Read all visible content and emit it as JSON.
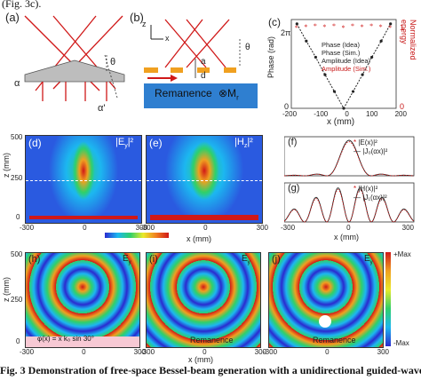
{
  "caption_top": "(Fig. 3c).",
  "caption_bottom": "Fig. 3 Demonstration of free-space Bessel-beam generation with a unidirectional guided-wave-",
  "panels": {
    "a": {
      "label": "(a)",
      "alpha": "α",
      "alpha_prime": "α'",
      "theta": "θ"
    },
    "b": {
      "label": "(b)",
      "z": "z",
      "x": "x",
      "a": "a",
      "d": "d",
      "theta": "θ",
      "remanence": "Remanence",
      "mr": "⊗M",
      "mr_sub": "r"
    },
    "c": {
      "label": "(c)",
      "ylabel_left": "Phase (rad)",
      "ylabel_right": "Normalized energy",
      "xlabel": "x (mm)",
      "ytick_left_top": "2π",
      "ytick_left_bottom": "0",
      "ytick_right_top": "1",
      "ytick_right_bottom": "0",
      "xticks": [
        "-200",
        "-100",
        "0",
        "100",
        "200"
      ],
      "legend": [
        "Phase (Idea)",
        "Phase (Sim.)",
        "Amplitude (Idea)",
        "Amplitude (Sim.)"
      ]
    },
    "d": {
      "label": "(d)",
      "title": "|E",
      "title_sub": "y",
      "title_sup": "|²"
    },
    "e": {
      "label": "(e)",
      "title": "|H",
      "title_sub": "z",
      "title_sup": "|²"
    },
    "f": {
      "label": "(f)",
      "legend": [
        "|E",
        "|J"
      ],
      "legend1": "|E(x)|²",
      "legend2": "|J₀(αx)|²"
    },
    "g": {
      "label": "(g)",
      "legend1": "|H(x)|²",
      "legend2": "|J₁(αx)|²",
      "xlabel": "x (mm)",
      "xticks": [
        "-300",
        "0",
        "300"
      ]
    },
    "fg_ylabel": "Normalized intensity",
    "de_axes": {
      "zlabel": "z (mm)",
      "zticks": [
        "500",
        "250",
        "0"
      ],
      "xticks_d": [
        "-300",
        "0",
        "300"
      ],
      "xticks_e": [
        "-300",
        "0",
        "300"
      ],
      "xlabel": "x (mm)"
    },
    "colorbar": {
      "min": "0",
      "max": "Max"
    },
    "h": {
      "label": "(h)",
      "field": "E",
      "field_sub": "y",
      "formula": "φ(x) = x k₀ sin 30°",
      "zlabel": "z (mm)",
      "zticks": [
        "500",
        "250",
        "0"
      ],
      "xticks": [
        "-300",
        "0",
        "300"
      ]
    },
    "i": {
      "label": "(i)",
      "field": "E",
      "field_sub": "y",
      "remanence": "Remanence",
      "xlabel": "x (mm)",
      "xticks": [
        "-300",
        "0",
        "300"
      ]
    },
    "j": {
      "label": "(j)",
      "field": "E",
      "field_sub": "y",
      "remanence": "Remanence",
      "xticks": [
        "-300",
        "0",
        "300"
      ]
    },
    "hij_colorbar": {
      "max": "+Max",
      "min": "-Max"
    }
  },
  "chart_data": {
    "type": "line",
    "title": "",
    "xlabel": "x (mm)",
    "ylabel": "Phase (rad)",
    "x": [
      -250,
      -200,
      -150,
      -100,
      -50,
      0,
      50,
      100,
      150,
      200,
      250
    ],
    "series": [
      {
        "name": "Phase (Idea)",
        "values": [
          6.28,
          5.0,
          3.8,
          2.5,
          1.25,
          0,
          1.25,
          2.5,
          3.8,
          5.0,
          6.28
        ]
      },
      {
        "name": "Amplitude (Sim.)",
        "values": [
          0.98,
          0.99,
          1.0,
          0.99,
          1.0,
          0.98,
          1.0,
          0.99,
          1.0,
          0.99,
          0.98
        ]
      }
    ]
  }
}
